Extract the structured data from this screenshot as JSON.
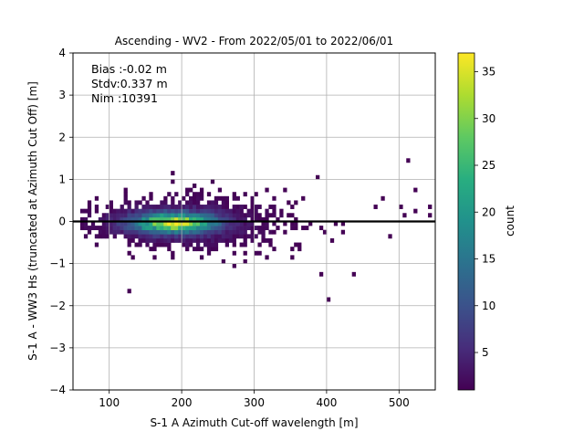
{
  "chart_data": {
    "type": "heatmap",
    "title": "Ascending - WV2 - From 2022/05/01 to 2022/06/01",
    "xlabel": "S-1 A Azimuth Cut-off wavelength [m]",
    "ylabel": "S-1 A - WW3 Hs (truncated at Azimuth Cut Off) [m]",
    "xlim": [
      50,
      550
    ],
    "ylim": [
      -4,
      4
    ],
    "xticks": [
      100,
      200,
      300,
      400,
      500
    ],
    "yticks": [
      -4,
      -3,
      -2,
      -1,
      0,
      1,
      2,
      3,
      4
    ],
    "grid": true,
    "reference_line_y": 0,
    "stats": {
      "bias": "Bias :-0.02 m",
      "stdv": "Stdv:0.337 m",
      "nim": "Nim :10391"
    },
    "colorbar": {
      "label": "count",
      "min": 1,
      "max": 37,
      "ticks": [
        5,
        10,
        15,
        20,
        25,
        30,
        35
      ],
      "colormap": "viridis"
    },
    "density_model": {
      "center_x": 190,
      "center_y": -0.03,
      "peak_count": 37
    }
  }
}
